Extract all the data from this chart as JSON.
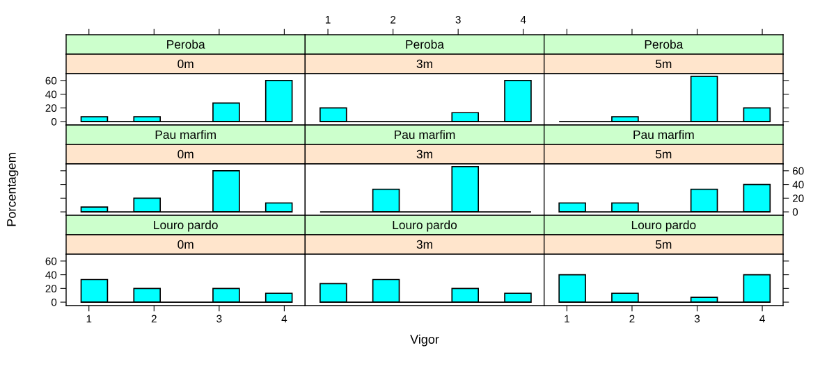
{
  "chart_data": [
    {
      "type": "histogram",
      "title": "Peroba",
      "subtitle": "0m",
      "bins": [
        0.88,
        1.285,
        1.69,
        2.095,
        2.5,
        2.905,
        3.31,
        3.715,
        4.12
      ],
      "values": [
        7,
        0,
        7,
        0,
        0,
        27,
        0,
        60
      ],
      "color": "#00ffff",
      "xlim": [
        0.65,
        4.32
      ],
      "xticks": [
        1,
        2,
        3,
        4
      ],
      "ylim": [
        -5,
        70
      ],
      "yticks": [
        0,
        20,
        40,
        60
      ],
      "tick_labels": "y"
    },
    {
      "type": "histogram",
      "title": "Peroba",
      "subtitle": "3m",
      "bins": [
        0.88,
        1.285,
        1.69,
        2.095,
        2.5,
        2.905,
        3.31,
        3.715,
        4.12
      ],
      "values": [
        20,
        0,
        0,
        0,
        0,
        13,
        0,
        60
      ],
      "color": "#00ffff",
      "xlim": [
        0.65,
        4.32
      ],
      "xticks": [
        1,
        2,
        3,
        4
      ],
      "ylim": [
        -5,
        70
      ],
      "yticks": [
        0,
        20,
        40,
        60
      ],
      "tick_labels": "x"
    },
    {
      "type": "histogram",
      "title": "Peroba",
      "subtitle": "5m",
      "bins": [
        0.88,
        1.285,
        1.69,
        2.095,
        2.5,
        2.905,
        3.31,
        3.715,
        4.12
      ],
      "values": [
        0,
        0,
        7,
        0,
        0,
        66,
        0,
        20
      ],
      "color": "#00ffff",
      "xlim": [
        0.65,
        4.32
      ],
      "xticks": [
        1,
        2,
        3,
        4
      ],
      "ylim": [
        -5,
        70
      ],
      "yticks": [
        0,
        20,
        40,
        60
      ],
      "tick_labels": false
    },
    {
      "type": "histogram",
      "title": "Pau marfim",
      "subtitle": "0m",
      "bins": [
        0.88,
        1.285,
        1.69,
        2.095,
        2.5,
        2.905,
        3.31,
        3.715,
        4.12
      ],
      "values": [
        7,
        0,
        20,
        0,
        0,
        60,
        0,
        13
      ],
      "color": "#00ffff",
      "xlim": [
        0.65,
        4.32
      ],
      "xticks": [
        1,
        2,
        3,
        4
      ],
      "ylim": [
        -5,
        70
      ],
      "yticks": [
        0,
        20,
        40,
        60
      ],
      "ylabel": "Porcentagem",
      "tick_labels": false
    },
    {
      "type": "histogram",
      "title": "Pau marfim",
      "subtitle": "3m",
      "bins": [
        0.88,
        1.285,
        1.69,
        2.095,
        2.5,
        2.905,
        3.31,
        3.715,
        4.12
      ],
      "values": [
        0,
        0,
        33,
        0,
        0,
        66,
        0,
        0
      ],
      "color": "#00ffff",
      "xlim": [
        0.65,
        4.32
      ],
      "xticks": [
        1,
        2,
        3,
        4
      ],
      "ylim": [
        -5,
        70
      ],
      "yticks": [
        0,
        20,
        40,
        60
      ],
      "tick_labels": false
    },
    {
      "type": "histogram",
      "title": "Pau marfim",
      "subtitle": "5m",
      "bins": [
        0.88,
        1.285,
        1.69,
        2.095,
        2.5,
        2.905,
        3.31,
        3.715,
        4.12
      ],
      "values": [
        13,
        0,
        13,
        0,
        0,
        33,
        0,
        40
      ],
      "color": "#00ffff",
      "xlim": [
        0.65,
        4.32
      ],
      "xticks": [
        1,
        2,
        3,
        4
      ],
      "ylim": [
        -5,
        70
      ],
      "yticks": [
        0,
        20,
        40,
        60
      ],
      "tick_labels": "y"
    },
    {
      "type": "histogram",
      "title": "Louro pardo",
      "subtitle": "0m",
      "bins": [
        0.88,
        1.285,
        1.69,
        2.095,
        2.5,
        2.905,
        3.31,
        3.715,
        4.12
      ],
      "values": [
        33,
        0,
        20,
        0,
        0,
        20,
        0,
        13
      ],
      "color": "#00ffff",
      "xlim": [
        0.65,
        4.32
      ],
      "xticks": [
        1,
        2,
        3,
        4
      ],
      "ylim": [
        -5,
        70
      ],
      "yticks": [
        0,
        20,
        40,
        60
      ]
    },
    {
      "type": "histogram",
      "title": "Louro pardo",
      "subtitle": "3m",
      "bins": [
        0.88,
        1.285,
        1.69,
        2.095,
        2.5,
        2.905,
        3.31,
        3.715,
        4.12
      ],
      "values": [
        27,
        0,
        33,
        0,
        0,
        20,
        0,
        13
      ],
      "color": "#00ffff",
      "xlim": [
        0.65,
        4.32
      ],
      "xticks": [
        1,
        2,
        3,
        4
      ],
      "ylim": [
        -5,
        70
      ],
      "yticks": [
        0,
        20,
        40,
        60
      ],
      "xlabel": "Vigor",
      "tick_labels": false
    },
    {
      "type": "histogram",
      "title": "Louro pardo",
      "subtitle": "5m",
      "bins": [
        0.88,
        1.285,
        1.69,
        2.095,
        2.5,
        2.905,
        3.31,
        3.715,
        4.12
      ],
      "values": [
        40,
        0,
        13,
        0,
        0,
        7,
        0,
        40
      ],
      "color": "#00ffff",
      "xlim": [
        0.65,
        4.32
      ],
      "xticks": [
        1,
        2,
        3,
        4
      ],
      "ylim": [
        -5,
        70
      ],
      "yticks": [
        0,
        20,
        40,
        60
      ],
      "tick_labels": "x"
    }
  ]
}
